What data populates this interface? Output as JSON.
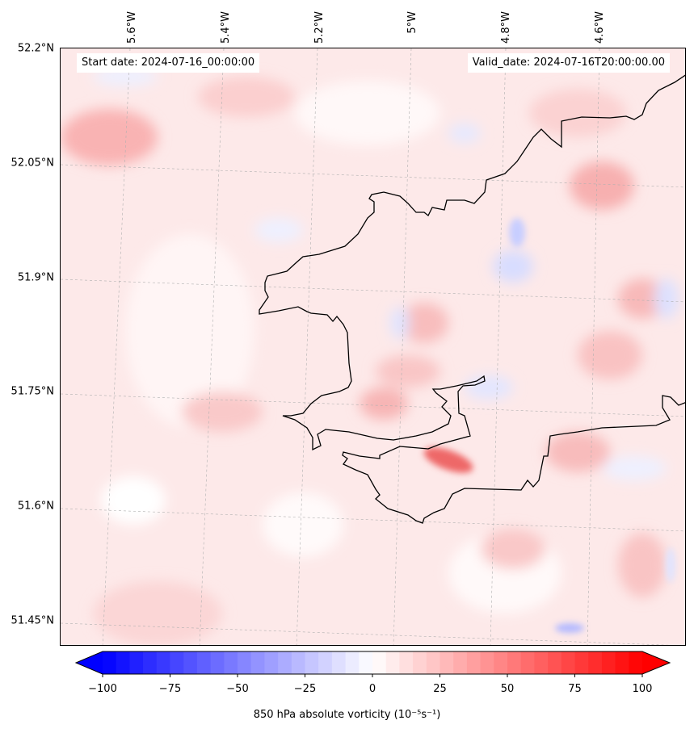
{
  "map": {
    "latitude_labels": [
      "52.2°N",
      "52.05°N",
      "51.9°N",
      "51.75°N",
      "51.6°N",
      "51.45°N"
    ],
    "longitude_labels": [
      "5.6°W",
      "5.4°W",
      "5.2°W",
      "5°W",
      "4.8°W",
      "4.6°W"
    ],
    "start_date": "Start date: 2024-07-16_00:00:00",
    "valid_date": "Valid_date: 2024-07-16T20:00:00.00",
    "field": "850 hPa absolute vorticity",
    "field_units": "(10⁻⁵s⁻¹)",
    "coastline_color": "#000000"
  },
  "colorbar": {
    "tick_labels": [
      "−100",
      "−75",
      "−50",
      "−25",
      "0",
      "25",
      "50",
      "75",
      "100"
    ],
    "label": "850 hPa absolute vorticity (10⁻⁵s⁻¹)",
    "min_color": "#0000ff",
    "mid_color": "#ffffff",
    "max_color": "#ff0000"
  }
}
